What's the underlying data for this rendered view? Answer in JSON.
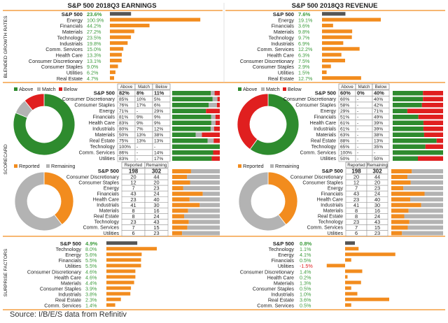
{
  "source": "Source: I/B/E/S data from Refinitiv",
  "colors": {
    "orange": "#f28c1e",
    "green": "#2e8b2e",
    "red": "#e01f1f",
    "grey": "#b3b3b3",
    "dark": "#555555",
    "posText": "#3a9a3a",
    "negText": "#e01f1f",
    "rule": "#f28c1e"
  },
  "sections": {
    "growth": "BLENDED GROWTH RATES",
    "scorecard": "SCORECARD",
    "surprise": "SURPRISE FACTORS"
  },
  "earnings_title": "S&P 500 2018Q3 EARNINGS",
  "revenue_title": "S&P 500 2018Q3 REVENUE",
  "legend_labels": {
    "above": "Above",
    "match": "Match",
    "below": "Below",
    "reported": "Reported",
    "remaining": "Remaining"
  },
  "table_headers": {
    "above": "Above",
    "match": "Match",
    "below": "Below",
    "reported": "Reported",
    "remaining": "Remaining"
  },
  "chart_data": [
    {
      "id": "earnings_growth",
      "type": "bar",
      "categories": [
        "S&P 500",
        "Energy",
        "Financials",
        "Materials",
        "Technology",
        "Industrials",
        "Comm. Services",
        "Health Care",
        "Consumer Discretionary",
        "Consumer Staples",
        "Utilities",
        "Real Estate"
      ],
      "labels": [
        "23.6%",
        "100.9%",
        "44.2%",
        "27.2%",
        "23.5%",
        "19.8%",
        "15.0%",
        "13.3%",
        "13.1%",
        "9.0%",
        "6.2%",
        "4.7%"
      ],
      "values": [
        23.6,
        100.9,
        44.2,
        27.2,
        23.5,
        19.8,
        15.0,
        13.3,
        13.1,
        9.0,
        6.2,
        4.7
      ]
    },
    {
      "id": "revenue_growth",
      "type": "bar",
      "categories": [
        "S&P 500",
        "Energy",
        "Financials",
        "Materials",
        "Technology",
        "Industrials",
        "Comm. Services",
        "Health Care",
        "Consumer Discretionary",
        "Consumer Staples",
        "Utilities",
        "Real Estate"
      ],
      "labels": [
        "7.6%",
        "19.1%",
        "3.6%",
        "9.8%",
        "9.7%",
        "6.9%",
        "12.2%",
        "6.3%",
        "7.5%",
        "2.9%",
        "1.5%",
        "12.7%"
      ],
      "values": [
        7.6,
        19.1,
        3.6,
        9.8,
        9.7,
        6.9,
        12.2,
        6.3,
        7.5,
        2.9,
        1.5,
        12.7
      ]
    },
    {
      "id": "earnings_scorecard",
      "type": "table",
      "pie": [
        82,
        8,
        11
      ],
      "rows": [
        {
          "name": "S&P 500",
          "above": "82%",
          "match": "8%",
          "below": "11%",
          "a": 82,
          "m": 8,
          "b": 11
        },
        {
          "name": "Consumer Discretionary",
          "above": "85%",
          "match": "10%",
          "below": "5%",
          "a": 85,
          "m": 10,
          "b": 5
        },
        {
          "name": "Consumer Staples",
          "above": "76%",
          "match": "17%",
          "below": "6%",
          "a": 76,
          "m": 17,
          "b": 6
        },
        {
          "name": "Energy",
          "above": "71%",
          "match": "-",
          "below": "29%",
          "a": 71,
          "m": 0,
          "b": 29
        },
        {
          "name": "Financials",
          "above": "81%",
          "match": "9%",
          "below": "9%",
          "a": 81,
          "m": 9,
          "b": 9
        },
        {
          "name": "Health Care",
          "above": "83%",
          "match": "9%",
          "below": "9%",
          "a": 83,
          "m": 9,
          "b": 9
        },
        {
          "name": "Industrials",
          "above": "80%",
          "match": "7%",
          "below": "12%",
          "a": 80,
          "m": 7,
          "b": 12
        },
        {
          "name": "Materials",
          "above": "50%",
          "match": "13%",
          "below": "38%",
          "a": 50,
          "m": 13,
          "b": 38
        },
        {
          "name": "Real Estate",
          "above": "75%",
          "match": "13%",
          "below": "13%",
          "a": 75,
          "m": 13,
          "b": 13
        },
        {
          "name": "Technology",
          "above": "100%",
          "match": "-",
          "below": "-",
          "a": 100,
          "m": 0,
          "b": 0
        },
        {
          "name": "Comm. Services",
          "above": "86%",
          "match": "-",
          "below": "14%",
          "a": 86,
          "m": 0,
          "b": 14
        },
        {
          "name": "Utilities",
          "above": "83%",
          "match": "-",
          "below": "17%",
          "a": 83,
          "m": 0,
          "b": 17
        }
      ]
    },
    {
      "id": "revenue_scorecard",
      "type": "table",
      "pie": [
        60,
        0,
        40
      ],
      "rows": [
        {
          "name": "S&P 500",
          "above": "60%",
          "match": "0%",
          "below": "40%",
          "a": 60,
          "m": 0,
          "b": 40
        },
        {
          "name": "Consumer Discretionary",
          "above": "60%",
          "match": "-",
          "below": "40%",
          "a": 60,
          "m": 0,
          "b": 40
        },
        {
          "name": "Consumer Staples",
          "above": "58%",
          "match": "-",
          "below": "42%",
          "a": 58,
          "m": 0,
          "b": 42
        },
        {
          "name": "Energy",
          "above": "29%",
          "match": "-",
          "below": "71%",
          "a": 29,
          "m": 0,
          "b": 71
        },
        {
          "name": "Financials",
          "above": "51%",
          "match": "-",
          "below": "49%",
          "a": 51,
          "m": 0,
          "b": 49
        },
        {
          "name": "Health Care",
          "above": "61%",
          "match": "-",
          "below": "39%",
          "a": 61,
          "m": 0,
          "b": 39
        },
        {
          "name": "Industrials",
          "above": "61%",
          "match": "-",
          "below": "39%",
          "a": 61,
          "m": 0,
          "b": 39
        },
        {
          "name": "Materials",
          "above": "63%",
          "match": "-",
          "below": "38%",
          "a": 63,
          "m": 0,
          "b": 38
        },
        {
          "name": "Real Estate",
          "above": "88%",
          "match": "-",
          "below": "13%",
          "a": 88,
          "m": 0,
          "b": 13
        },
        {
          "name": "Technology",
          "above": "65%",
          "match": "-",
          "below": "35%",
          "a": 65,
          "m": 0,
          "b": 35
        },
        {
          "name": "Comm. Services",
          "above": "100%",
          "match": "-",
          "below": "-",
          "a": 100,
          "m": 0,
          "b": 0
        },
        {
          "name": "Utilities",
          "above": "50%",
          "match": "-",
          "below": "50%",
          "a": 50,
          "m": 0,
          "b": 50
        }
      ]
    },
    {
      "id": "reported_status",
      "type": "table",
      "pie": [
        198,
        302
      ],
      "rows": [
        {
          "name": "S&P 500",
          "reported": 198,
          "remaining": 302
        },
        {
          "name": "Consumer Discretionary",
          "reported": 20,
          "remaining": 44
        },
        {
          "name": "Consumer Staples",
          "reported": 12,
          "remaining": 20
        },
        {
          "name": "Energy",
          "reported": 7,
          "remaining": 23
        },
        {
          "name": "Financials",
          "reported": 43,
          "remaining": 24
        },
        {
          "name": "Health Care",
          "reported": 23,
          "remaining": 40
        },
        {
          "name": "Industrials",
          "reported": 41,
          "remaining": 30
        },
        {
          "name": "Materials",
          "reported": 8,
          "remaining": 16
        },
        {
          "name": "Real Estate",
          "reported": 8,
          "remaining": 24
        },
        {
          "name": "Technology",
          "reported": 23,
          "remaining": 43
        },
        {
          "name": "Comm. Services",
          "reported": 7,
          "remaining": 15
        },
        {
          "name": "Utilities",
          "reported": 6,
          "remaining": 23
        }
      ]
    },
    {
      "id": "earnings_surprise",
      "type": "bar",
      "categories": [
        "S&P 500",
        "Technology",
        "Energy",
        "Financials",
        "Utilities",
        "Consumer Discretionary",
        "Health Care",
        "Materials",
        "Consumer Staples",
        "Industrials",
        "Real Estate",
        "Comm. Services"
      ],
      "labels": [
        "4.9%",
        "8.0%",
        "5.6%",
        "5.5%",
        "5.5%",
        "4.6%",
        "4.6%",
        "4.4%",
        "3.9%",
        "3.8%",
        "2.3%",
        "1.4%"
      ],
      "values": [
        4.9,
        8.0,
        5.6,
        5.5,
        5.5,
        4.6,
        4.6,
        4.4,
        3.9,
        3.8,
        2.3,
        1.4
      ]
    },
    {
      "id": "revenue_surprise",
      "type": "bar",
      "categories": [
        "S&P 500",
        "Technology",
        "Energy",
        "Financials",
        "Utilities",
        "Consumer Discretionary",
        "Health Care",
        "Materials",
        "Consumer Staples",
        "Industrials",
        "Real Estate",
        "Comm. Services"
      ],
      "labels": [
        "0.8%",
        "1.1%",
        "4.1%",
        "0.5%",
        "-1.5%",
        "1.4%",
        "0.2%",
        "1.3%",
        "0.5%",
        "1.0%",
        "3.6%",
        "0.5%"
      ],
      "values": [
        0.8,
        1.1,
        4.1,
        0.5,
        -1.5,
        1.4,
        0.2,
        1.3,
        0.5,
        1.0,
        3.6,
        0.5
      ]
    }
  ]
}
